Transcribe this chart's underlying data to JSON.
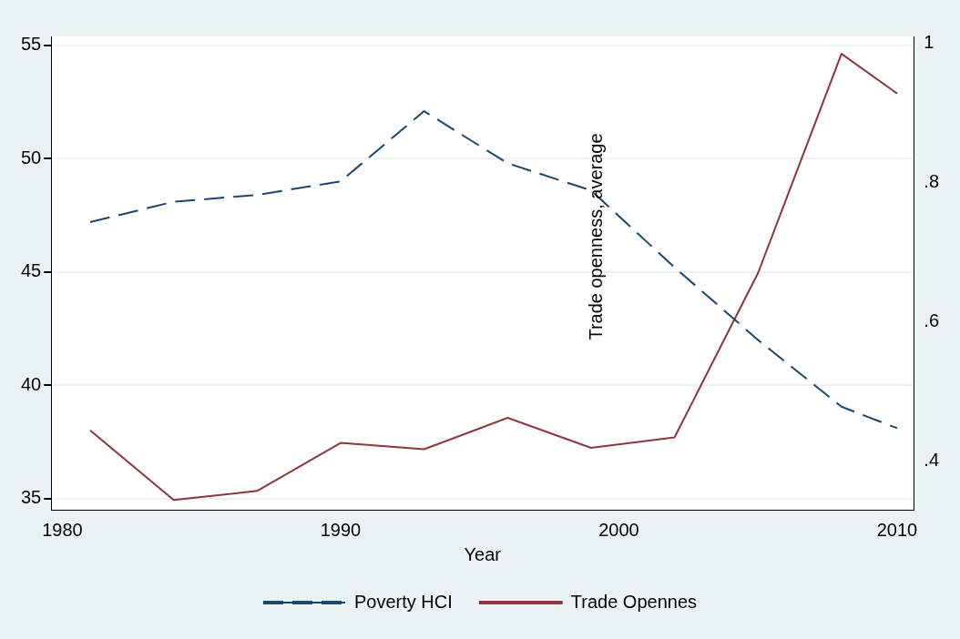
{
  "chart_data": {
    "type": "line",
    "xlabel": "Year",
    "y2label": "Trade openness, average",
    "x": [
      1981,
      1984,
      1987,
      1990,
      1993,
      1996,
      1999,
      2002,
      2005,
      2008,
      2010
    ],
    "series": [
      {
        "name": "Poverty HCI",
        "color": "#1a476f",
        "line_style": "dashed",
        "values": [
          47.2,
          48.1,
          48.4,
          49.0,
          52.1,
          49.8,
          48.6,
          45.2,
          42.0,
          39.05,
          38.1
        ]
      },
      {
        "name": "Trade Opennes",
        "color": "#90353b",
        "line_style": "solid",
        "axis": "y2",
        "values": [
          0.444,
          0.344,
          0.357,
          0.426,
          0.417,
          0.462,
          0.419,
          0.434,
          0.67,
          0.985,
          0.928
        ]
      }
    ],
    "xlim": [
      1979.6,
      2010.6
    ],
    "xticks": [
      1980,
      1990,
      2000,
      2010
    ],
    "ylim": [
      34.5,
      55.4
    ],
    "yticks": [
      35,
      40,
      45,
      50,
      55
    ],
    "y2lim": [
      0.33,
      1.01
    ],
    "y2ticks": [
      {
        "value": 0.4,
        "label": ".4"
      },
      {
        "value": 0.6,
        "label": ".6"
      },
      {
        "value": 0.8,
        "label": ".8"
      },
      1
    ],
    "grid": "y",
    "legend": "bottom",
    "marker": "none"
  }
}
